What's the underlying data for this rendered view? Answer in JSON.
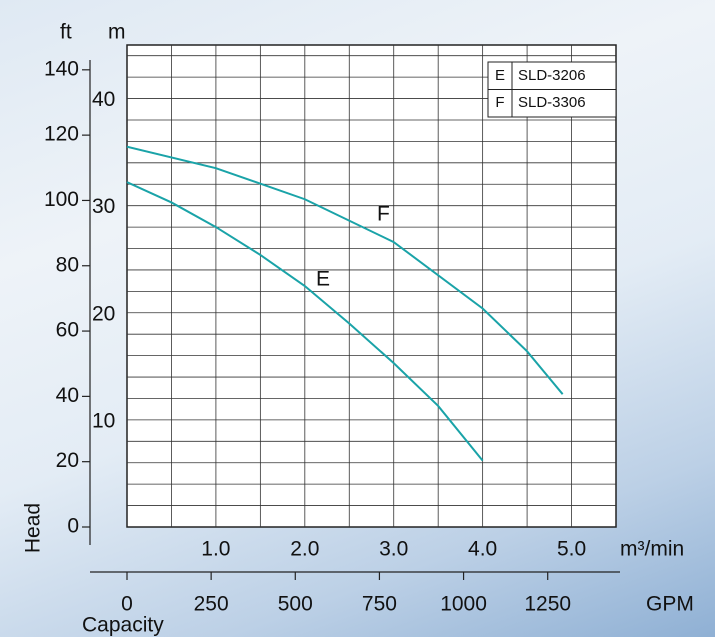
{
  "chart_data": {
    "type": "line",
    "y_label": "m",
    "y2_label": "ft",
    "axis_title_y": "Head",
    "axis_title_x": "Capacity",
    "x_label": "m³/min",
    "x2_label": "GPM",
    "xlim": [
      0,
      5.5
    ],
    "xticks": [
      {
        "value": 1,
        "label": "1.0"
      },
      {
        "value": 2,
        "label": "2.0"
      },
      {
        "value": 3,
        "label": "3.0"
      },
      {
        "value": 4,
        "label": "4.0"
      },
      {
        "value": 5,
        "label": "5.0"
      }
    ],
    "x_grid": [
      0.5,
      1,
      1.5,
      2,
      2.5,
      3,
      3.5,
      4,
      4.5,
      5
    ],
    "ylim": [
      0,
      45
    ],
    "yticks": [
      10,
      20,
      30,
      40
    ],
    "y_grid": [
      2,
      4,
      6,
      8,
      10,
      12,
      14,
      16,
      18,
      20,
      22,
      24,
      26,
      28,
      30,
      32,
      34,
      36,
      38,
      40,
      42,
      44
    ],
    "y2lim": [
      0,
      147.6
    ],
    "y2ticks": [
      0,
      20,
      40,
      60,
      80,
      100,
      120,
      140
    ],
    "x2lim": [
      0,
      1452.9
    ],
    "x2ticks": [
      0,
      250,
      500,
      750,
      1000,
      1250
    ],
    "grid": true,
    "series": [
      {
        "name": "SLD-3206",
        "label": "E",
        "color": "#1aa3a8",
        "x": [
          0,
          0.5,
          1,
          1.5,
          2,
          2.5,
          3,
          3.5,
          4
        ],
        "values": [
          32.2,
          30.3,
          28,
          25.4,
          22.5,
          19,
          15.3,
          11.3,
          6.2
        ]
      },
      {
        "name": "SLD-3306",
        "label": "F",
        "color": "#1aa3a8",
        "x": [
          0,
          1,
          2,
          3,
          4,
          4.5,
          4.9
        ],
        "values": [
          35.5,
          33.5,
          30.6,
          26.6,
          20.4,
          16.4,
          12.4
        ]
      }
    ]
  }
}
